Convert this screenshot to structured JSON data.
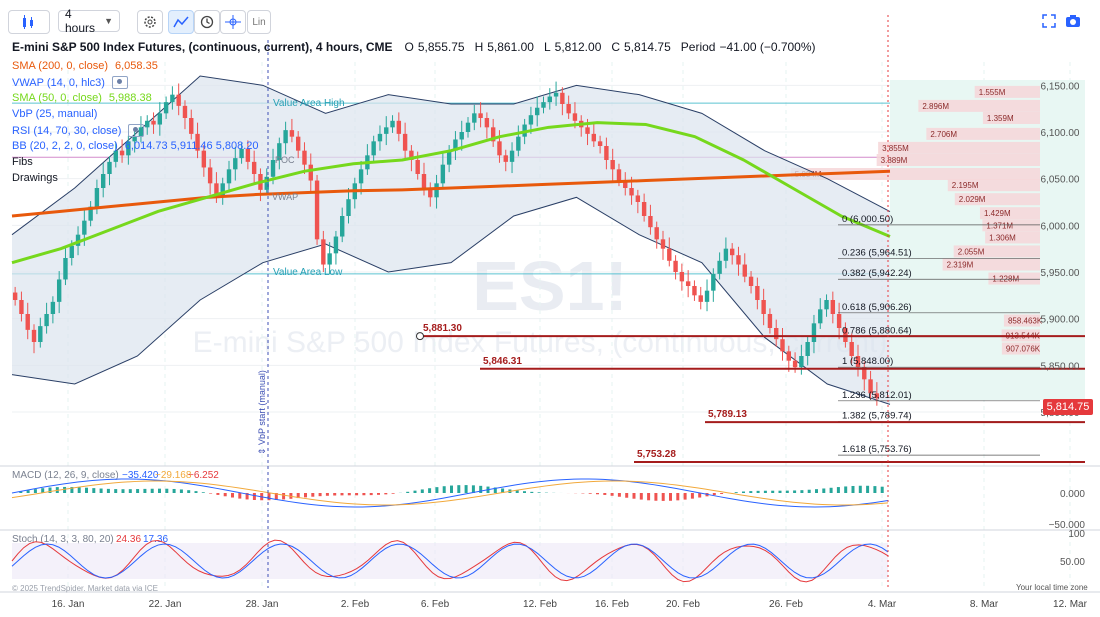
{
  "toolbar": {
    "interval": "4 hours",
    "lin_label": "Lin"
  },
  "header": {
    "title": "E-mini S&P 500 Index Futures, (continuous, current), 4 hours, CME",
    "open_label": "O",
    "open": "5,855.75",
    "high_label": "H",
    "high": "5,861.00",
    "low_label": "L",
    "low": "5,812.00",
    "close_label": "C",
    "close": "5,814.75",
    "period_label": "Period",
    "period": "−41.00 (−0.700%)"
  },
  "indicators": [
    {
      "name": "SMA (200, 0, close)",
      "value": "6,058.35",
      "color": "#e8590c"
    },
    {
      "name": "VWAP (14, 0, hlc3)",
      "value": "",
      "color": "#2962ff"
    },
    {
      "name": "SMA (50, 0, close)",
      "value": "5,988.38",
      "color": "#76d81c"
    },
    {
      "name": "VbP (25, manual)",
      "value": "",
      "color": "#2962ff"
    },
    {
      "name": "RSI (14, 70, 30, close)",
      "value": "",
      "color": "#2962ff"
    },
    {
      "name": "BB (20, 2, 2, 0, close)",
      "value": "6,014.73 5,911.46 5,808.20",
      "color": "#2962ff"
    },
    {
      "name": "Fibs",
      "value": "",
      "color": "#131722"
    },
    {
      "name": "Drawings",
      "value": "",
      "color": "#131722"
    }
  ],
  "overlay_labels": {
    "value_area_high": "Value Area High",
    "value_area_low": "Value Area Low",
    "vwap": "VWAP",
    "poc": "POC",
    "vbp_start": "⇕ VbP start (manual)",
    "watermark_symbol": "ES1!",
    "watermark_name": "E-mini S&P 500 Index Futures, (continuous, current)",
    "copyright": "© 2025 TrendSpider. Market data via ICE",
    "local_time": "Your local time zone"
  },
  "current_price": "5,814.75",
  "macd": {
    "label": "MACD (12, 26, 9, close)",
    "macd": "−35.420",
    "signal": "−29.168",
    "hist": "−6.252",
    "tick_labels": [
      "0.000",
      "−50.000"
    ]
  },
  "stoch": {
    "label": "Stoch (14, 3, 3, 80, 20)",
    "k": "24.36",
    "d": "17.36",
    "tick_labels": [
      "100",
      "50.00"
    ]
  },
  "chart_data": {
    "type": "candlestick",
    "title": "E-mini S&P 500 Index Futures, (continuous, current), 4 hours, CME",
    "y_ticks": [
      "6,150.00",
      "6,100.00",
      "6,050.00",
      "6,000.00",
      "5,950.00",
      "5,900.00",
      "5,850.00",
      "5,800.00"
    ],
    "y_tick_values": [
      6150,
      6100,
      6050,
      6000,
      5950,
      5900,
      5850,
      5800
    ],
    "x_ticks": [
      "16. Jan",
      "22. Jan",
      "28. Jan",
      "2. Feb",
      "6. Feb",
      "12. Feb",
      "16. Feb",
      "20. Feb",
      "26. Feb",
      "4. Mar",
      "8. Mar",
      "12. Mar"
    ],
    "ylim": [
      5770,
      6175
    ],
    "candle_closes": [
      5920,
      5905,
      5888,
      5875,
      5892,
      5905,
      5918,
      5942,
      5965,
      5978,
      5990,
      6005,
      6020,
      6040,
      6055,
      6068,
      6080,
      6075,
      6090,
      6095,
      6105,
      6112,
      6108,
      6120,
      6132,
      6140,
      6128,
      6115,
      6098,
      6080,
      6062,
      6045,
      6030,
      6045,
      6060,
      6072,
      6082,
      6068,
      6055,
      6038,
      6052,
      6070,
      6088,
      6102,
      6095,
      6080,
      6065,
      6048,
      5985,
      5958,
      5970,
      5988,
      6010,
      6028,
      6045,
      6060,
      6075,
      6090,
      6098,
      6105,
      6112,
      6098,
      6080,
      6070,
      6055,
      6040,
      6030,
      6045,
      6065,
      6080,
      6092,
      6100,
      6110,
      6120,
      6115,
      6105,
      6090,
      6075,
      6068,
      6080,
      6095,
      6108,
      6118,
      6126,
      6132,
      6138,
      6142,
      6130,
      6120,
      6112,
      6105,
      6098,
      6090,
      6085,
      6070,
      6060,
      6048,
      6040,
      6032,
      6025,
      6010,
      5998,
      5985,
      5975,
      5962,
      5950,
      5940,
      5935,
      5925,
      5918,
      5930,
      5948,
      5962,
      5975,
      5968,
      5958,
      5945,
      5935,
      5920,
      5905,
      5890,
      5878,
      5865,
      5855,
      5848,
      5860,
      5875,
      5895,
      5910,
      5920,
      5905,
      5890,
      5875,
      5860,
      5848,
      5835,
      5820,
      5814.75
    ],
    "sma200": [
      6010,
      6015,
      6020,
      6025,
      6030,
      6033,
      6035,
      6037,
      6038,
      6040,
      6042,
      6044,
      6046,
      6048,
      6050,
      6052,
      6054,
      6056,
      6058
    ],
    "sma50": [
      5960,
      5975,
      5995,
      6015,
      6030,
      6045,
      6058,
      6066,
      6070,
      6080,
      6095,
      6105,
      6110,
      6108,
      6095,
      6070,
      6040,
      6010,
      5988
    ],
    "bb_upper": [
      5990,
      6040,
      6100,
      6160,
      6150,
      6120,
      6140,
      6130,
      6130,
      6150,
      6140,
      6120,
      6080,
      6050,
      6014.73
    ],
    "bb_lower": [
      5840,
      5830,
      5860,
      5920,
      5960,
      5980,
      5950,
      5960,
      6010,
      6030,
      5990,
      5960,
      5880,
      5830,
      5808.2
    ],
    "volume_profile": [
      {
        "price": 6143,
        "label": "1.555M"
      },
      {
        "price": 6128,
        "label": "2.896M"
      },
      {
        "price": 6115,
        "label": "1.359M"
      },
      {
        "price": 6098,
        "label": "2.706M"
      },
      {
        "price": 6083,
        "label": "3.855M"
      },
      {
        "price": 6070,
        "label": "3.889M"
      },
      {
        "price": 6055,
        "label": "5.934M"
      },
      {
        "price": 6043,
        "label": "2.195M"
      },
      {
        "price": 6028,
        "label": "2.029M"
      },
      {
        "price": 6013,
        "label": "1.429M"
      },
      {
        "price": 6000,
        "label": "1.371M"
      },
      {
        "price": 5987,
        "label": "1.306M"
      },
      {
        "price": 5972,
        "label": "2.055M"
      },
      {
        "price": 5958,
        "label": "2.319M"
      },
      {
        "price": 5943,
        "label": "1.228M"
      },
      {
        "price": 5898,
        "label": "858.463K"
      },
      {
        "price": 5882,
        "label": "913.544K"
      },
      {
        "price": 5868,
        "label": "907.076K"
      }
    ],
    "fib_levels": [
      {
        "ratio": "0",
        "price": "6,000.50",
        "value": 6000.5
      },
      {
        "ratio": "0.236",
        "price": "5,964.51",
        "value": 5964.51
      },
      {
        "ratio": "0.382",
        "price": "5,942.24",
        "value": 5942.24
      },
      {
        "ratio": "0.618",
        "price": "5,906.26",
        "value": 5906.26
      },
      {
        "ratio": "0.786",
        "price": "5,880.64",
        "value": 5880.64
      },
      {
        "ratio": "1",
        "price": "5,848.00",
        "value": 5848.0
      },
      {
        "ratio": "1.236",
        "price": "5,812.01",
        "value": 5812.01
      },
      {
        "ratio": "1.382",
        "price": "5,789.74",
        "value": 5789.74
      },
      {
        "ratio": "1.618",
        "price": "5,753.76",
        "value": 5753.76
      }
    ],
    "drawn_levels": [
      {
        "label": "5,881.30",
        "value": 5881.3
      },
      {
        "label": "5,846.31",
        "value": 5846.31
      },
      {
        "label": "5,789.13",
        "value": 5789.13
      },
      {
        "label": "5,753.28",
        "value": 5753.28
      }
    ],
    "value_area_high": 6131,
    "value_area_low": 5948,
    "poc": 6073,
    "grid": true,
    "colors": {
      "up": "#26a69a",
      "down": "#ef5350",
      "sma200": "#e8590c",
      "sma50": "#76d81c",
      "bb": "#2a3f66",
      "fib": "#131722",
      "level": "#a51c1c"
    }
  }
}
